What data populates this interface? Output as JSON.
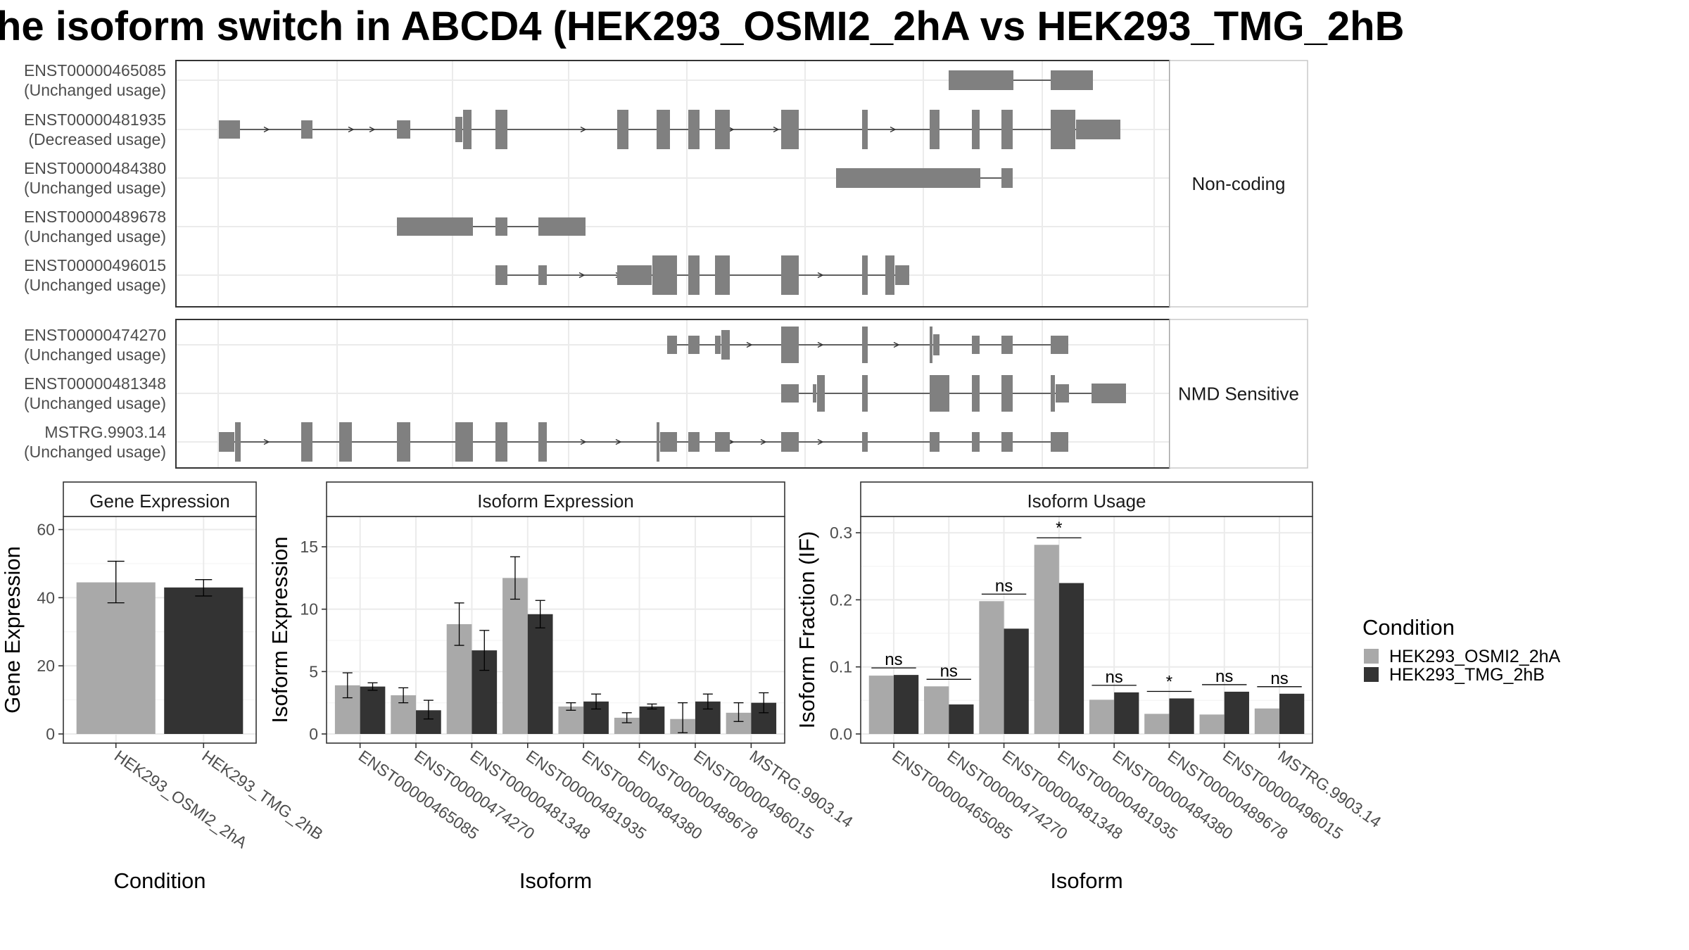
{
  "title": "he isoform switch in ABCD4 (HEK293_OSMI2_2hA vs HEK293_TMG_2hB",
  "colors": {
    "cond1": "#a9a9a9",
    "cond2": "#333333",
    "exon": "#808080",
    "grid": "#ebebeb",
    "strip_bg": "#ffffff"
  },
  "structure": {
    "panels": [
      {
        "label": "Non-coding",
        "transcripts": [
          {
            "id": "ENST00000465085",
            "status": "(Unchanged usage)"
          },
          {
            "id": "ENST00000481935",
            "status": "(Decreased usage)"
          },
          {
            "id": "ENST00000484380",
            "status": "(Unchanged usage)"
          },
          {
            "id": "ENST00000489678",
            "status": "(Unchanged usage)"
          },
          {
            "id": "ENST00000496015",
            "status": "(Unchanged usage)"
          }
        ]
      },
      {
        "label": "NMD Sensitive",
        "transcripts": [
          {
            "id": "ENST00000474270",
            "status": "(Unchanged usage)"
          },
          {
            "id": "ENST00000481348",
            "status": "(Unchanged usage)"
          },
          {
            "id": "MSTRG.9903.14",
            "status": "(Unchanged usage)"
          }
        ]
      }
    ]
  },
  "legend": {
    "title": "Condition",
    "items": [
      "HEK293_OSMI2_2hA",
      "HEK293_TMG_2hB"
    ]
  },
  "chart_data": [
    {
      "type": "bar",
      "title": "Gene Expression",
      "xlabel": "Condition",
      "ylabel": "Gene Expression",
      "ylim": [
        0,
        63
      ],
      "yticks": [
        0,
        20,
        40,
        60
      ],
      "categories": [
        "HEK293_OSMI2_2hA",
        "HEK293_TMG_2hB"
      ],
      "values": [
        44.5,
        43
      ],
      "err_low": [
        38.5,
        40.5
      ],
      "err_high": [
        50.7,
        45.3
      ]
    },
    {
      "type": "bar",
      "title": "Isoform Expression",
      "xlabel": "Isoform",
      "ylabel": "Isoform Expression",
      "ylim": [
        0,
        17.2
      ],
      "yticks": [
        0,
        5,
        10,
        15
      ],
      "categories": [
        "ENST00000465085",
        "ENST00000474270",
        "ENST00000481348",
        "ENST00000481935",
        "ENST00000484380",
        "ENST00000489678",
        "ENST00000496015",
        "MSTRG.9903.14"
      ],
      "series": [
        {
          "name": "HEK293_OSMI2_2hA",
          "values": [
            3.9,
            3.1,
            8.8,
            12.5,
            2.2,
            1.3,
            1.2,
            1.7
          ],
          "err_low": [
            2.9,
            2.5,
            7.1,
            10.8,
            1.9,
            0.9,
            0.1,
            1.0
          ],
          "err_high": [
            4.9,
            3.7,
            10.5,
            14.2,
            2.5,
            1.7,
            2.5,
            2.5
          ]
        },
        {
          "name": "HEK293_TMG_2hB",
          "values": [
            3.8,
            1.9,
            6.7,
            9.6,
            2.6,
            2.2,
            2.6,
            2.5
          ],
          "err_low": [
            3.5,
            1.2,
            5.1,
            8.5,
            2.0,
            2.0,
            2.0,
            1.7
          ],
          "err_high": [
            4.1,
            2.7,
            8.3,
            10.7,
            3.2,
            2.4,
            3.2,
            3.3
          ]
        }
      ]
    },
    {
      "type": "bar",
      "title": "Isoform Usage",
      "xlabel": "Isoform",
      "ylabel": "Isoform Fraction (IF)",
      "ylim": [
        0,
        0.32
      ],
      "yticks": [
        0.0,
        0.1,
        0.2,
        0.3
      ],
      "ytick_labels": [
        "0.0",
        "0.1",
        "0.2",
        "0.3"
      ],
      "categories": [
        "ENST00000465085",
        "ENST00000474270",
        "ENST00000481348",
        "ENST00000481935",
        "ENST00000484380",
        "ENST00000489678",
        "ENST00000496015",
        "MSTRG.9903.14"
      ],
      "series": [
        {
          "name": "HEK293_OSMI2_2hA",
          "values": [
            0.087,
            0.071,
            0.198,
            0.282,
            0.051,
            0.03,
            0.029,
            0.038
          ]
        },
        {
          "name": "HEK293_TMG_2hB",
          "values": [
            0.088,
            0.044,
            0.157,
            0.225,
            0.062,
            0.053,
            0.063,
            0.06
          ]
        }
      ],
      "significance": [
        "ns",
        "ns",
        "ns",
        "*",
        "ns",
        "*",
        "ns",
        "ns"
      ]
    }
  ]
}
